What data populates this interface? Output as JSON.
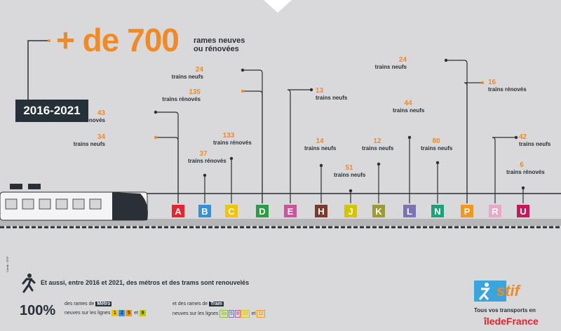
{
  "headline": {
    "big": "+ de 700",
    "sub_line1": "rames neuves",
    "sub_line2": "ou rénovées"
  },
  "years": "2016-2021",
  "lines": [
    {
      "letter": "A",
      "color": "#e3262f",
      "entries": [
        {
          "number": "43",
          "text": "trains rénovés"
        },
        {
          "number": "34",
          "text": "trains neufs"
        }
      ]
    },
    {
      "letter": "B",
      "color": "#3a8fd1",
      "entries": [
        {
          "number": "37",
          "text": "trains rénovés"
        }
      ]
    },
    {
      "letter": "C",
      "color": "#f1c400",
      "entries": [
        {
          "number": "133",
          "text": "trains rénovés"
        }
      ]
    },
    {
      "letter": "D",
      "color": "#2e9c47",
      "entries": [
        {
          "number": "24",
          "text": "trains neufs"
        },
        {
          "number": "135",
          "text": "trains rénovés"
        }
      ]
    },
    {
      "letter": "E",
      "color": "#c8559d",
      "entries": [
        {
          "number": "13",
          "text": "trains neufs"
        }
      ]
    },
    {
      "letter": "H",
      "color": "#7a3b2e",
      "entries": [
        {
          "number": "14",
          "text": "trains neufs"
        }
      ]
    },
    {
      "letter": "J",
      "color": "#d5c400",
      "entries": [
        {
          "number": "51",
          "text": "trains neufs"
        }
      ]
    },
    {
      "letter": "K",
      "color": "#9c9b3a",
      "entries": [
        {
          "number": "12",
          "text": "trains neufs"
        }
      ]
    },
    {
      "letter": "L",
      "color": "#7b73b8",
      "entries": [
        {
          "number": "44",
          "text": "trains neufs"
        }
      ]
    },
    {
      "letter": "N",
      "color": "#1fa27b",
      "entries": [
        {
          "number": "80",
          "text": "trains neufs"
        }
      ]
    },
    {
      "letter": "P",
      "color": "#f09a1a",
      "entries": [
        {
          "number": "24",
          "text": "trains neufs"
        },
        {
          "number": "16",
          "text": "trains rénovés"
        }
      ]
    },
    {
      "letter": "R",
      "color": "#e8a9c8",
      "entries": [
        {
          "number": "42",
          "text": "trains neufs"
        }
      ]
    },
    {
      "letter": "U",
      "color": "#c8175b",
      "entries": [
        {
          "number": "6",
          "text": "trains rénovés"
        }
      ]
    }
  ],
  "footer": {
    "title": "Et aussi, entre 2016 et 2021, des métros et des trams sont renouvelés",
    "percent": "100%",
    "metro_prefix": "des rames de",
    "metro_chip": "Métro",
    "metro_suffix": "neuves sur les lignes",
    "metro_lines": [
      {
        "n": "1",
        "color": "#f1c400"
      },
      {
        "n": "2",
        "color": "#3a8fd1"
      },
      {
        "n": "5",
        "color": "#f09a1a"
      },
      {
        "n": "9",
        "color": "#c8c400"
      }
    ],
    "metro_and": "et",
    "tram_prefix": "et des rames de",
    "tram_chip": "Tram",
    "tram_suffix": "neuves sur les lignes",
    "tram_lines": [
      "3a",
      "5",
      "9",
      "10",
      "11"
    ],
    "tram_and": "et"
  },
  "logo": {
    "word": "stif",
    "tagline": "Tous vos transports en",
    "brand": "îledeFrance"
  },
  "credit": "Crédit : STIF"
}
